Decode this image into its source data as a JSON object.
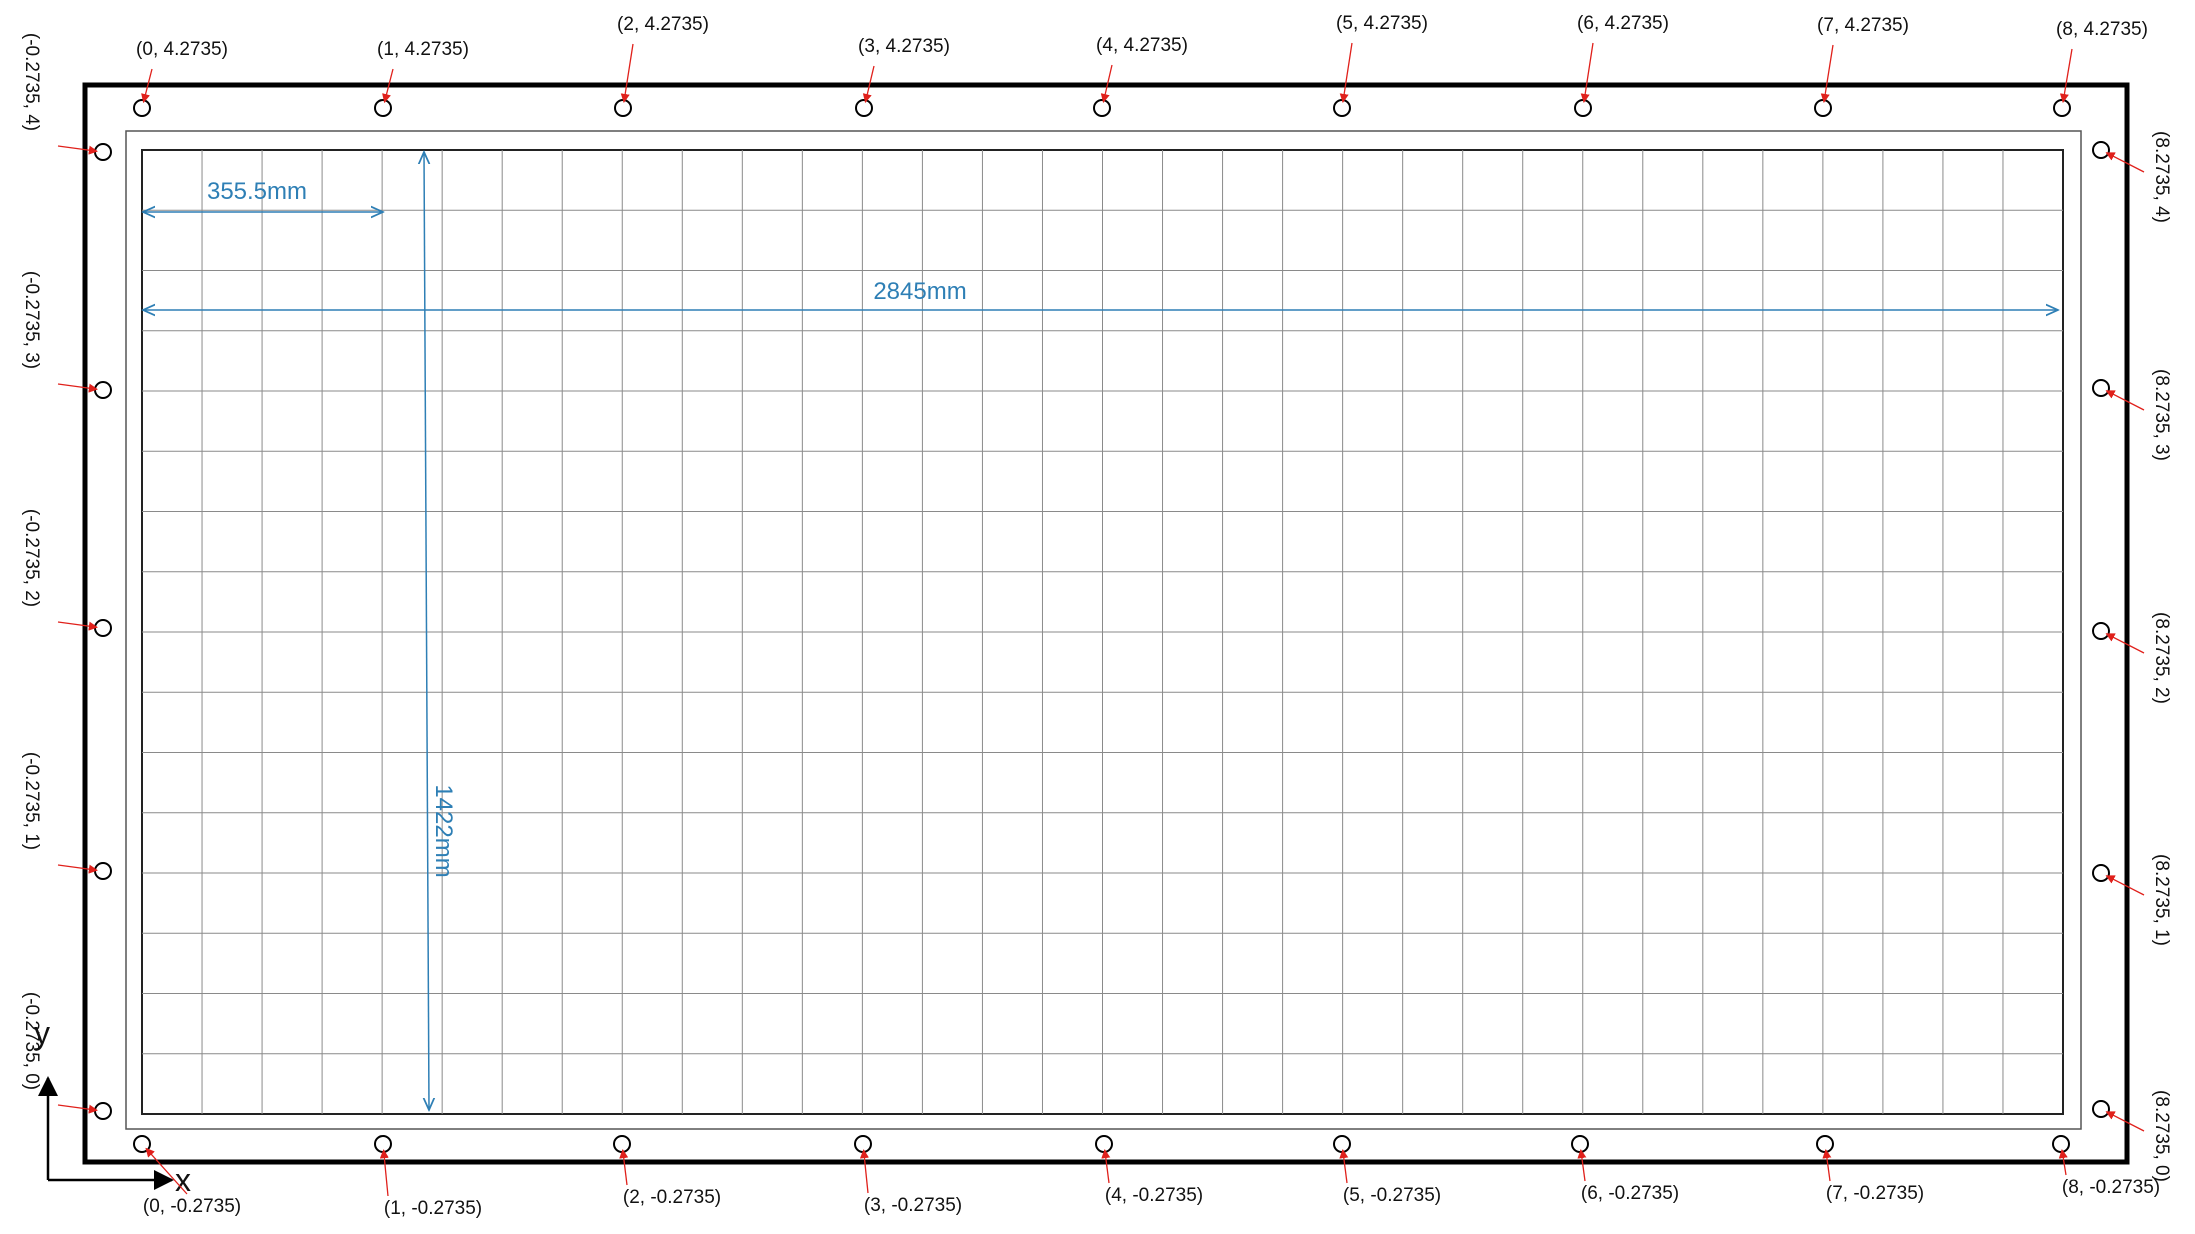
{
  "colors": {
    "frame": "#000000",
    "panel": "#555555",
    "grid": "#8a8a8a",
    "dimension": "#2e7fb5",
    "pointer": "#e0201b",
    "marker": "#000000"
  },
  "grid": {
    "columns": 32,
    "rows": 16
  },
  "dimensions": {
    "cell_width": "355.5mm",
    "total_width": "2845mm",
    "total_height": "1422mm"
  },
  "axes": {
    "x": "x",
    "y": "y"
  },
  "markers": {
    "top": [
      "(0, 4.2735)",
      "(1, 4.2735)",
      "(2, 4.2735)",
      "(3, 4.2735)",
      "(4, 4.2735)",
      "(5, 4.2735)",
      "(6, 4.2735)",
      "(7, 4.2735)",
      "(8, 4.2735)"
    ],
    "bottom": [
      "(0, -0.2735)",
      "(1, -0.2735)",
      "(2, -0.2735)",
      "(3, -0.2735)",
      "(4, -0.2735)",
      "(5, -0.2735)",
      "(6, -0.2735)",
      "(7, -0.2735)",
      "(8, -0.2735)"
    ],
    "left": [
      "(-0.2735, 4)",
      "(-0.2735, 3)",
      "(-0.2735, 2)",
      "(-0.2735, 1)",
      "(-0.2735, 0)"
    ],
    "right": [
      "(8.2735, 4)",
      "(8.2735, 3)",
      "(8.2735, 2)",
      "(8.2735, 1)",
      "(8.2735, 0)"
    ]
  }
}
